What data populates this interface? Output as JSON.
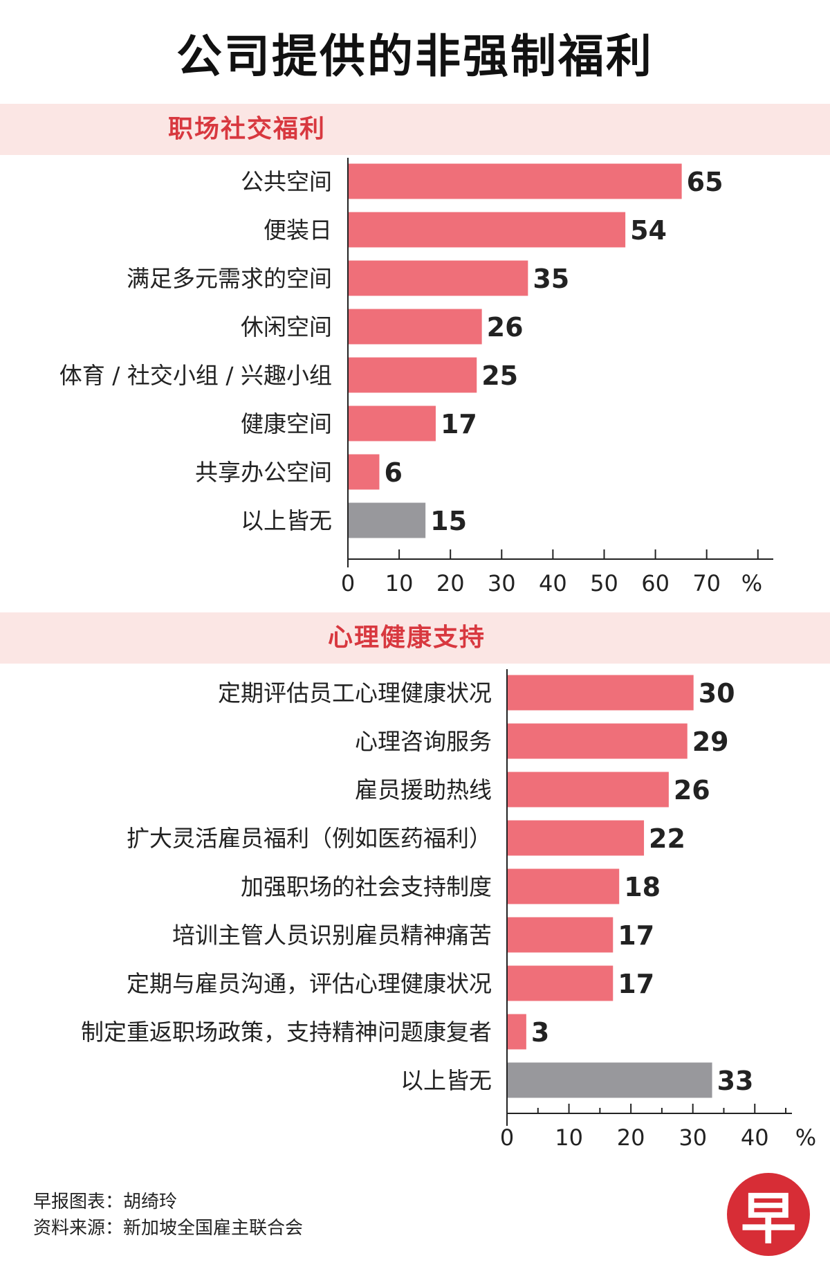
{
  "title": "公司提供的非强制福利",
  "colors": {
    "bar": "#ef6f79",
    "bar_none": "#98989c",
    "band": "#fbe6e4",
    "accent": "#d8383f"
  },
  "chart_data": [
    {
      "type": "bar",
      "orientation": "horizontal",
      "title": "职场社交福利",
      "categories": [
        "公共空间",
        "便装日",
        "满足多元需求的空间",
        "休闲空间",
        "体育 / 社交小组 / 兴趣小组",
        "健康空间",
        "共享办公空间",
        "以上皆无"
      ],
      "values": [
        65,
        54,
        35,
        26,
        25,
        17,
        6,
        15
      ],
      "ticks": [
        "0",
        "10",
        "20",
        "30",
        "40",
        "50",
        "60",
        "70"
      ],
      "unit": "%",
      "xlim": [
        0,
        83
      ]
    },
    {
      "type": "bar",
      "orientation": "horizontal",
      "title": "心理健康支持",
      "categories": [
        "定期评估员工心理健康状况",
        "心理咨询服务",
        "雇员援助热线",
        "扩大灵活雇员福利（例如医药福利）",
        "加强职场的社会支持制度",
        "培训主管人员识别雇员精神痛苦",
        "定期与雇员沟通，评估心理健康状况",
        "制定重返职场政策，支持精神问题康复者",
        "以上皆无"
      ],
      "values": [
        30,
        29,
        26,
        22,
        18,
        17,
        17,
        3,
        33
      ],
      "ticks": [
        "0",
        "10",
        "20",
        "30",
        "40"
      ],
      "unit": "%",
      "xlim": [
        0,
        46
      ]
    }
  ],
  "footer": {
    "credit": "早报图表：胡绮玲",
    "source": "资料来源：新加坡全国雇主联合会"
  },
  "logo": {
    "glyph": "早"
  }
}
